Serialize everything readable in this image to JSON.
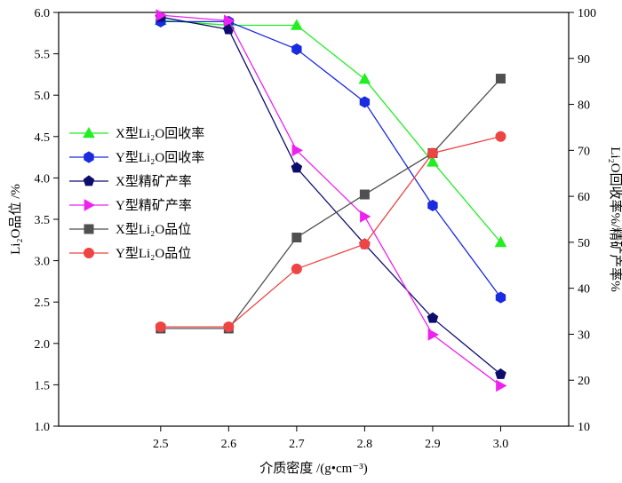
{
  "chart_data": {
    "type": "line",
    "x": [
      2.5,
      2.6,
      2.7,
      2.8,
      2.9,
      3.0
    ],
    "xlabel": "介质密度 /(g•cm⁻³)",
    "ylabel_left": "Li₂O品位 /%",
    "ylabel_right": "Li₂O回收率%/精矿产率%",
    "xlim": [
      2.35,
      3.1
    ],
    "ylim_left": [
      1.0,
      6.0
    ],
    "ylim_right": [
      10,
      100
    ],
    "xticks": [
      "2.5",
      "2.6",
      "2.7",
      "2.8",
      "2.9",
      "3.0"
    ],
    "yticks_left": [
      "1.0",
      "1.5",
      "2.0",
      "2.5",
      "3.0",
      "3.5",
      "4.0",
      "4.5",
      "5.0",
      "5.5",
      "6.0"
    ],
    "yticks_right": [
      "10",
      "20",
      "30",
      "40",
      "50",
      "60",
      "70",
      "80",
      "90",
      "100"
    ],
    "grid": false,
    "legend_position": "left",
    "series": [
      {
        "name": "X型Li₂O回收率",
        "axis": "right",
        "marker": "triangle-up",
        "color": "#22ee22",
        "values": [
          98.3,
          97.2,
          97.2,
          85.5,
          67.5,
          50.0
        ]
      },
      {
        "name": "Y型Li₂O回收率",
        "axis": "right",
        "marker": "hexagon",
        "color": "#1a2be0",
        "values": [
          98.0,
          98.0,
          92.0,
          80.5,
          58.0,
          38.0
        ]
      },
      {
        "name": "X型精矿产率",
        "axis": "right",
        "marker": "pentagon",
        "color": "#0d0d6e",
        "values": [
          99.0,
          96.3,
          66.2,
          49.6,
          33.5,
          21.3
        ]
      },
      {
        "name": "Y型精矿产率",
        "axis": "right",
        "marker": "triangle-right",
        "color": "#ee22ee",
        "values": [
          99.4,
          98.2,
          70.0,
          55.6,
          29.9,
          18.8
        ]
      },
      {
        "name": "X型Li₂O品位",
        "axis": "left",
        "marker": "square",
        "color": "#505050",
        "values": [
          2.18,
          2.18,
          3.28,
          3.8,
          4.3,
          5.2
        ]
      },
      {
        "name": "Y型Li₂O品位",
        "axis": "left",
        "marker": "circle",
        "color": "#ee4444",
        "values": [
          2.2,
          2.2,
          2.9,
          3.2,
          4.3,
          4.5
        ]
      }
    ]
  }
}
